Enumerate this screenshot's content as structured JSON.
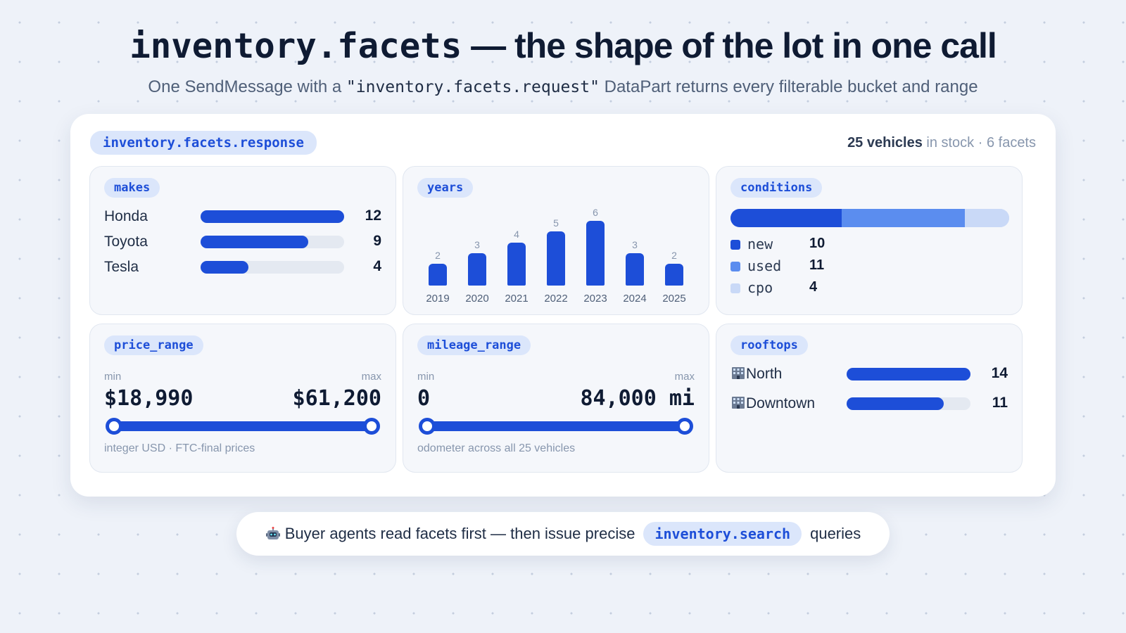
{
  "header": {
    "title_code": "inventory.facets",
    "title_rest": " — the shape of the lot in one call",
    "subtitle_pre": "One SendMessage with a ",
    "subtitle_code": "\"inventory.facets.request\"",
    "subtitle_post": " DataPart returns every filterable bucket and range"
  },
  "card": {
    "response_label": "inventory.facets.response",
    "vehicles_count": "25 vehicles",
    "in_stock_text": " in stock",
    "separator": " · ",
    "facets_text": "6 facets"
  },
  "makes": {
    "label": "makes",
    "items": [
      {
        "name": "Honda",
        "count": 12,
        "count_text": "12"
      },
      {
        "name": "Toyota",
        "count": 9,
        "count_text": "9"
      },
      {
        "name": "Tesla",
        "count": 4,
        "count_text": "4"
      }
    ],
    "max": 12
  },
  "years": {
    "label": "years",
    "chart_data": {
      "type": "bar",
      "categories": [
        "2019",
        "2020",
        "2021",
        "2022",
        "2023",
        "2024",
        "2025"
      ],
      "values": [
        2,
        3,
        4,
        5,
        6,
        3,
        2
      ],
      "value_labels": [
        "2",
        "3",
        "4",
        "5",
        "6",
        "3",
        "2"
      ]
    }
  },
  "conditions": {
    "label": "conditions",
    "items": [
      {
        "name": "new",
        "count": 10,
        "count_text": "10",
        "color": "#1d4ed8"
      },
      {
        "name": "used",
        "count": 11,
        "count_text": "11",
        "color": "#5b8def"
      },
      {
        "name": "cpo",
        "count": 4,
        "count_text": "4",
        "color": "#c9d9f7"
      }
    ],
    "total": 25
  },
  "price_range": {
    "label": "price_range",
    "min_label": "min",
    "max_label": "max",
    "min_value": "$18,990",
    "max_value": "$61,200",
    "note": "integer USD · FTC-final prices"
  },
  "mileage_range": {
    "label": "mileage_range",
    "min_label": "min",
    "max_label": "max",
    "min_value": "0",
    "max_value": "84,000 mi",
    "note": "odometer across all 25 vehicles"
  },
  "rooftops": {
    "label": "rooftops",
    "icon": "office-building-icon",
    "items": [
      {
        "name": "North",
        "count": 14,
        "count_text": "14"
      },
      {
        "name": "Downtown",
        "count": 11,
        "count_text": "11"
      }
    ],
    "max": 14
  },
  "footer": {
    "icon": "robot-icon",
    "pre": "Buyer agents read facets first — then issue precise",
    "code": "inventory.search",
    "post": "queries"
  },
  "colors": {
    "accent": "#1d4ed8",
    "accent_mid": "#5b8def",
    "accent_light": "#c9d9f7",
    "pill_bg": "#dbe6fb"
  }
}
